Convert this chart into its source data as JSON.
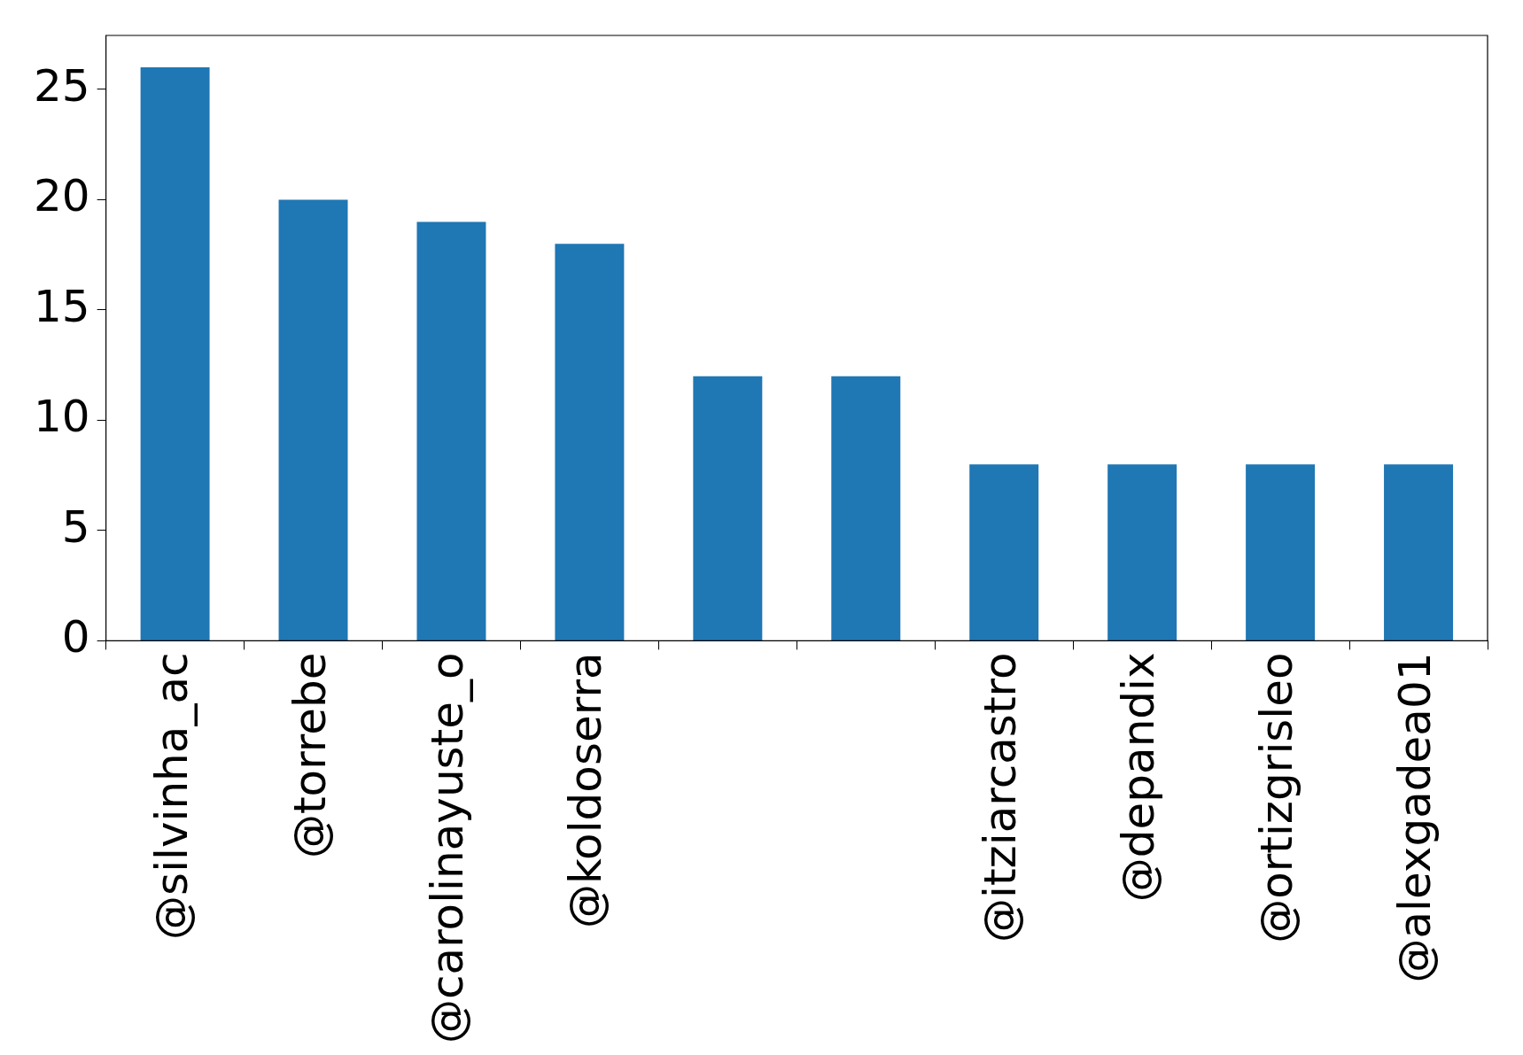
{
  "chart_data": {
    "type": "bar",
    "categories": [
      "@silvinha_ac",
      "@torrebe",
      "@carolinayuste_o",
      "@koldoserra",
      null,
      null,
      "@itziarcastro",
      "@depandix",
      "@ortizgrisleo",
      "@alexgadea01"
    ],
    "values": [
      26,
      20,
      19,
      18,
      12,
      12,
      8,
      8,
      8,
      8
    ],
    "color": "#1f77b4",
    "ylim": [
      0,
      27.45
    ],
    "yticks": [
      0,
      5,
      10,
      15,
      20,
      25
    ],
    "grid": false,
    "legend": false
  }
}
